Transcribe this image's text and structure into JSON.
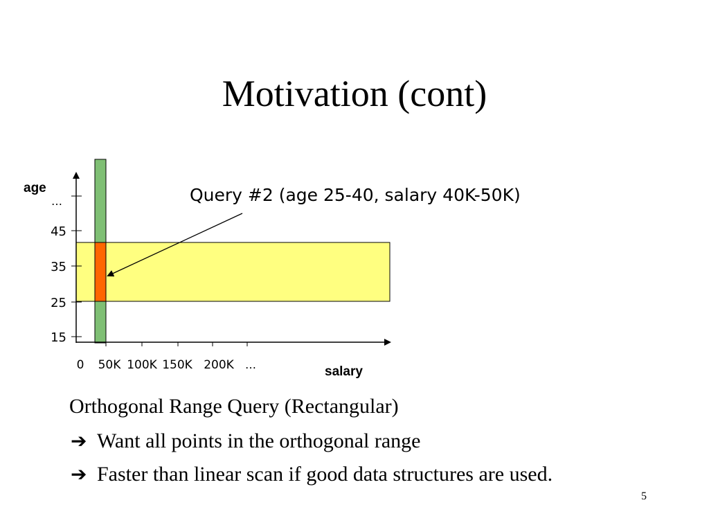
{
  "slide": {
    "title": "Motivation (cont)",
    "page_number": "5"
  },
  "diagram": {
    "y_axis_label": "age",
    "x_axis_label": "salary",
    "y_ticks": [
      "15",
      "25",
      "35",
      "45",
      "…"
    ],
    "x_ticks": [
      "0",
      "50K",
      "100K",
      "150K",
      "200K",
      "…"
    ],
    "query_callout": "Query #2 (age 25-40, salary 40K-50K)",
    "colors": {
      "age_band": "#ffff80",
      "salary_band": "#7fbf74",
      "intersection": "#ff6600",
      "axis": "#000000"
    }
  },
  "body": {
    "heading": "Orthogonal Range Query (Rectangular)",
    "bullets": [
      "Want all points in the orthogonal range",
      "Faster than linear scan if good data structures are used."
    ],
    "bullet_icon": "right-arrow-icon"
  }
}
